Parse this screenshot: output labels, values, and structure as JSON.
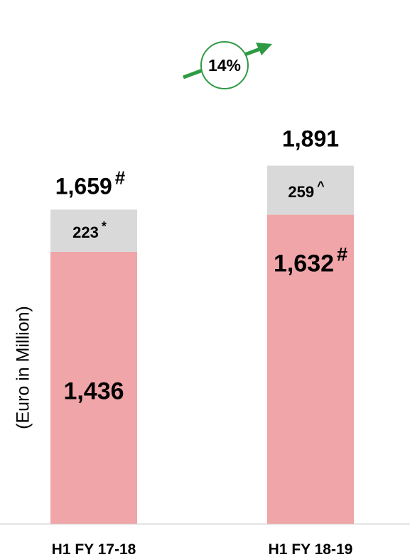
{
  "chart_data": {
    "type": "bar",
    "stacked": true,
    "ylabel": "(Euro in Million)",
    "categories": [
      "H1 FY 17-18",
      "H1 FY 18-19"
    ],
    "series": [
      {
        "values": [
          1436,
          1632
        ],
        "color": "#f0a5a8"
      },
      {
        "values": [
          223,
          259
        ],
        "color": "#d9d9d9"
      }
    ],
    "segment_labels": [
      [
        {
          "text": "1,436",
          "mark": ""
        },
        {
          "text": "223",
          "mark": "*"
        }
      ],
      [
        {
          "text": "1,632",
          "mark": "#"
        },
        {
          "text": "259",
          "mark": "^"
        }
      ]
    ],
    "total_labels": [
      {
        "text": "1,659",
        "mark": "#",
        "value": 1659
      },
      {
        "text": "1,891",
        "mark": "",
        "value": 1891
      }
    ],
    "growth_label": "14%",
    "colors": {
      "arrow": "#2e9a44",
      "circle": "#2e9a44",
      "axis": "#d0d0d0"
    }
  }
}
